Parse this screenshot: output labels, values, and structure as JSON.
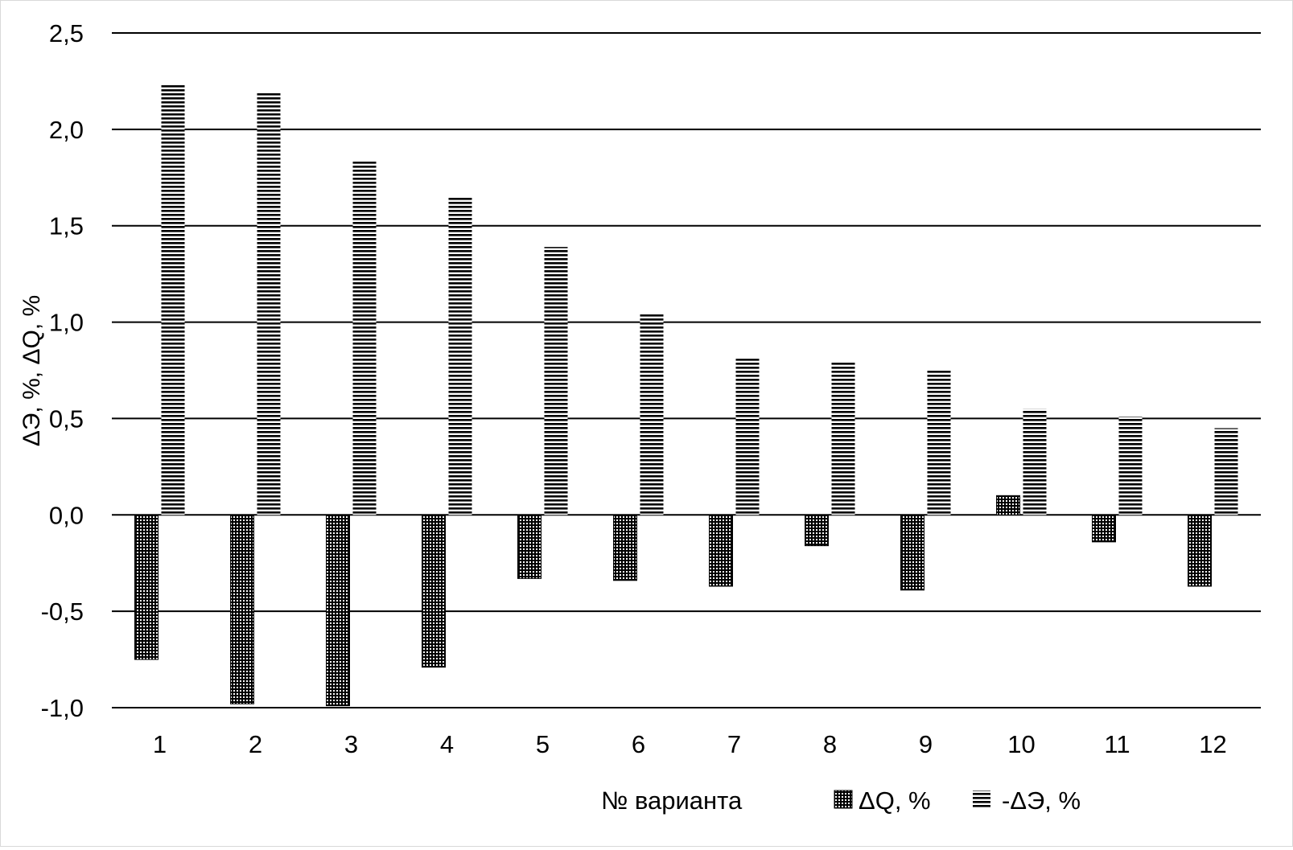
{
  "chart_data": {
    "type": "bar",
    "categories": [
      "1",
      "2",
      "3",
      "4",
      "5",
      "6",
      "7",
      "8",
      "9",
      "10",
      "11",
      "12"
    ],
    "series": [
      {
        "name": "ΔQ, %",
        "pattern": "dots",
        "values": [
          -0.75,
          -0.98,
          -0.99,
          -0.79,
          -0.33,
          -0.34,
          -0.37,
          -0.16,
          -0.39,
          0.1,
          -0.14,
          -0.37
        ]
      },
      {
        "name": "-ΔЭ, %",
        "pattern": "horizontal-lines",
        "values": [
          2.23,
          2.19,
          1.84,
          1.65,
          1.39,
          1.04,
          0.81,
          0.79,
          0.75,
          0.55,
          0.51,
          0.45
        ]
      }
    ],
    "ylabel": "ΔЭ, %, ΔQ, %",
    "xlabel": "№ варианта",
    "ylim": [
      -1.0,
      2.5
    ],
    "yticks": [
      2.5,
      2.0,
      1.5,
      1.0,
      0.5,
      0.0,
      -0.5,
      -1.0
    ],
    "ytick_labels": [
      "2,5",
      "2,0",
      "1,5",
      "1,0",
      "0,5",
      "0,0",
      "-0,5",
      "-1,0"
    ],
    "grid": true,
    "legend_position": "bottom",
    "colors": {
      "bar": "#000000",
      "background": "#ffffff",
      "grid": "#000000"
    }
  }
}
